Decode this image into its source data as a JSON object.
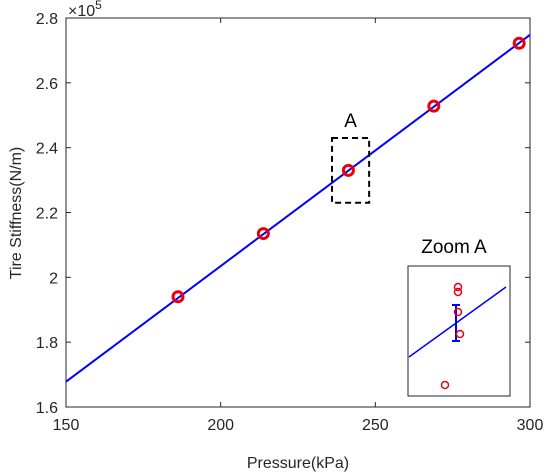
{
  "chart_data": {
    "type": "scatter",
    "xlabel": "Pressure(kPa)",
    "ylabel": "Tire Stiffness(N/m)",
    "xlim": [
      150,
      300
    ],
    "ylim": [
      1.6,
      2.8
    ],
    "y_multiplier_label": "×10",
    "y_multiplier_exp": "5",
    "x_ticks": [
      150,
      200,
      250,
      300
    ],
    "x_tick_labels": [
      "150",
      "200",
      "250",
      "300"
    ],
    "y_ticks": [
      1.6,
      1.8,
      2.0,
      2.2,
      2.4,
      2.6,
      2.8
    ],
    "y_tick_labels": [
      "1.6",
      "1.8",
      "2",
      "2.2",
      "2.4",
      "2.6",
      "2.8"
    ],
    "grid": false,
    "series": [
      {
        "type": "scatter",
        "color": "#e8000b",
        "marker": "circle",
        "x": [
          186.2,
          213.8,
          241.3,
          268.9,
          296.5
        ],
        "y": [
          1.94,
          2.135,
          2.33,
          2.528,
          2.722
        ]
      },
      {
        "type": "line",
        "color": "#0000ff",
        "x": [
          150,
          300
        ],
        "y": [
          1.678,
          2.748
        ]
      }
    ],
    "annotations": [
      {
        "text": "A",
        "box_x": [
          236,
          248
        ],
        "box_y": [
          2.23,
          2.43
        ]
      },
      {
        "text": "Zoom A"
      }
    ]
  }
}
